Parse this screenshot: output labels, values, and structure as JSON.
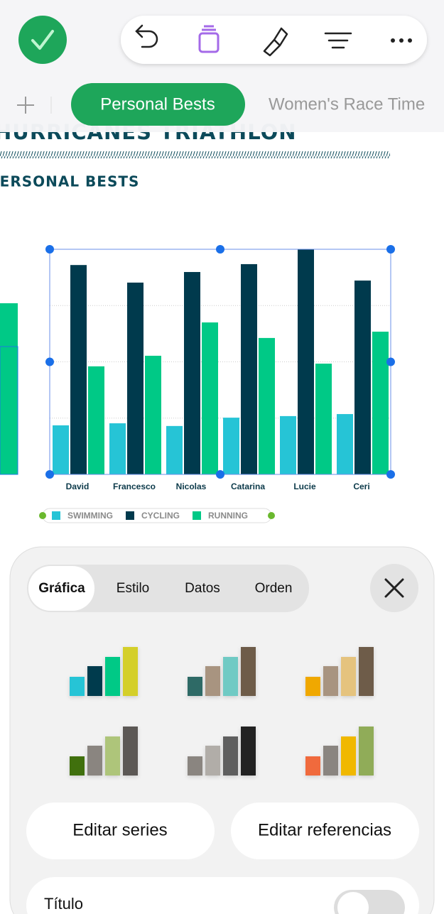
{
  "tabs": {
    "active": "Personal Bests",
    "next": "Women's Race Time"
  },
  "document": {
    "title": "HURRICANES TRIATHLON",
    "subtitle": "PERSONAL BESTS"
  },
  "chart_data": {
    "type": "bar",
    "categories": [
      "David",
      "Francesco",
      "Nicolas",
      "Catarina",
      "Lucie",
      "Ceri"
    ],
    "series": [
      {
        "name": "SWIMMING",
        "color": "#26c4d6",
        "values": [
          21.8,
          22.7,
          21.5,
          25.2,
          25.9,
          26.8
        ]
      },
      {
        "name": "CYCLING",
        "color": "#003a4d",
        "values": [
          93,
          85.2,
          89.9,
          93.4,
          100,
          86.1
        ]
      },
      {
        "name": "RUNNING",
        "color": "#00c986",
        "values": [
          48,
          52.7,
          67.5,
          60.6,
          49.2,
          63.4
        ]
      }
    ],
    "ylim": [
      0,
      100
    ],
    "yticks": [
      25,
      50,
      75
    ],
    "grid": true
  },
  "panel": {
    "segments": [
      "Gráfica",
      "Estilo",
      "Datos",
      "Orden"
    ],
    "buttons": [
      "Editar series",
      "Editar referencias"
    ],
    "row_label": "Título"
  }
}
